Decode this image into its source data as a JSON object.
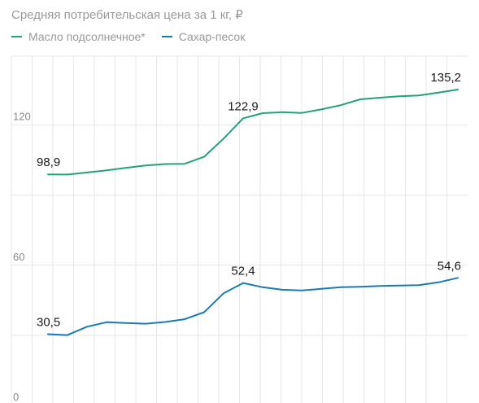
{
  "title": "Средняя потребительская цена за 1 кг, ₽",
  "colors": {
    "grid": "#e6e6e6",
    "tick": "#8a8a8a",
    "label": "#1a1a1a"
  },
  "chart_data": {
    "type": "line",
    "title": "Средняя потребительская цена за 1 кг, ₽",
    "xlabel": "",
    "ylabel": "",
    "ylim": [
      0,
      150
    ],
    "yticks": [
      0,
      60,
      120
    ],
    "ytick_labels": [
      "0",
      "60",
      "120"
    ],
    "grid": true,
    "legend_position": "top-left",
    "x": [
      1,
      2,
      3,
      4,
      5,
      6,
      7,
      8,
      9,
      10,
      11,
      12,
      13,
      14,
      15,
      16,
      17,
      18,
      19,
      20,
      21,
      22
    ],
    "series": [
      {
        "name": "Масло подсолнечное*",
        "color": "#1fa37c",
        "values": [
          98.9,
          98.8,
          99.7,
          100.6,
          101.7,
          102.7,
          103.3,
          103.4,
          106.4,
          114.2,
          122.9,
          125.1,
          125.5,
          125.2,
          126.7,
          128.5,
          131.0,
          131.7,
          132.3,
          132.7,
          133.9,
          135.2
        ],
        "annotations": [
          {
            "index": 0,
            "text": "98,9"
          },
          {
            "index": 10,
            "text": "122,9"
          },
          {
            "index": 21,
            "text": "135,2"
          }
        ]
      },
      {
        "name": "Сахар-песок",
        "color": "#1a7ab8",
        "values": [
          30.5,
          30.1,
          33.7,
          35.6,
          35.3,
          35.0,
          35.7,
          36.9,
          39.9,
          48.0,
          52.4,
          50.6,
          49.5,
          49.2,
          49.9,
          50.6,
          50.8,
          51.1,
          51.3,
          51.5,
          52.7,
          54.6
        ],
        "annotations": [
          {
            "index": 0,
            "text": "30,5"
          },
          {
            "index": 10,
            "text": "52,4"
          },
          {
            "index": 21,
            "text": "54,6"
          }
        ]
      }
    ]
  }
}
